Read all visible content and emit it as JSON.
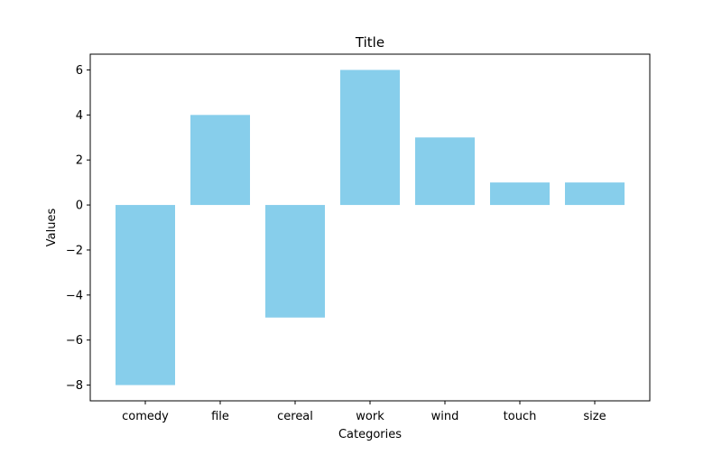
{
  "chart_data": {
    "type": "bar",
    "title": "Title",
    "xlabel": "Categories",
    "ylabel": "Values",
    "categories": [
      "comedy",
      "file",
      "cereal",
      "work",
      "wind",
      "touch",
      "size"
    ],
    "values": [
      -8,
      4,
      -5,
      6,
      3,
      1,
      1
    ],
    "ylim": [
      -8.7,
      6.7
    ],
    "yticks": [
      -8,
      -6,
      -4,
      -2,
      0,
      2,
      4,
      6
    ],
    "ytick_labels": [
      "−8",
      "−6",
      "−4",
      "−2",
      "0",
      "2",
      "4",
      "6"
    ],
    "grid": false,
    "bar_color": "#87ceeb"
  }
}
